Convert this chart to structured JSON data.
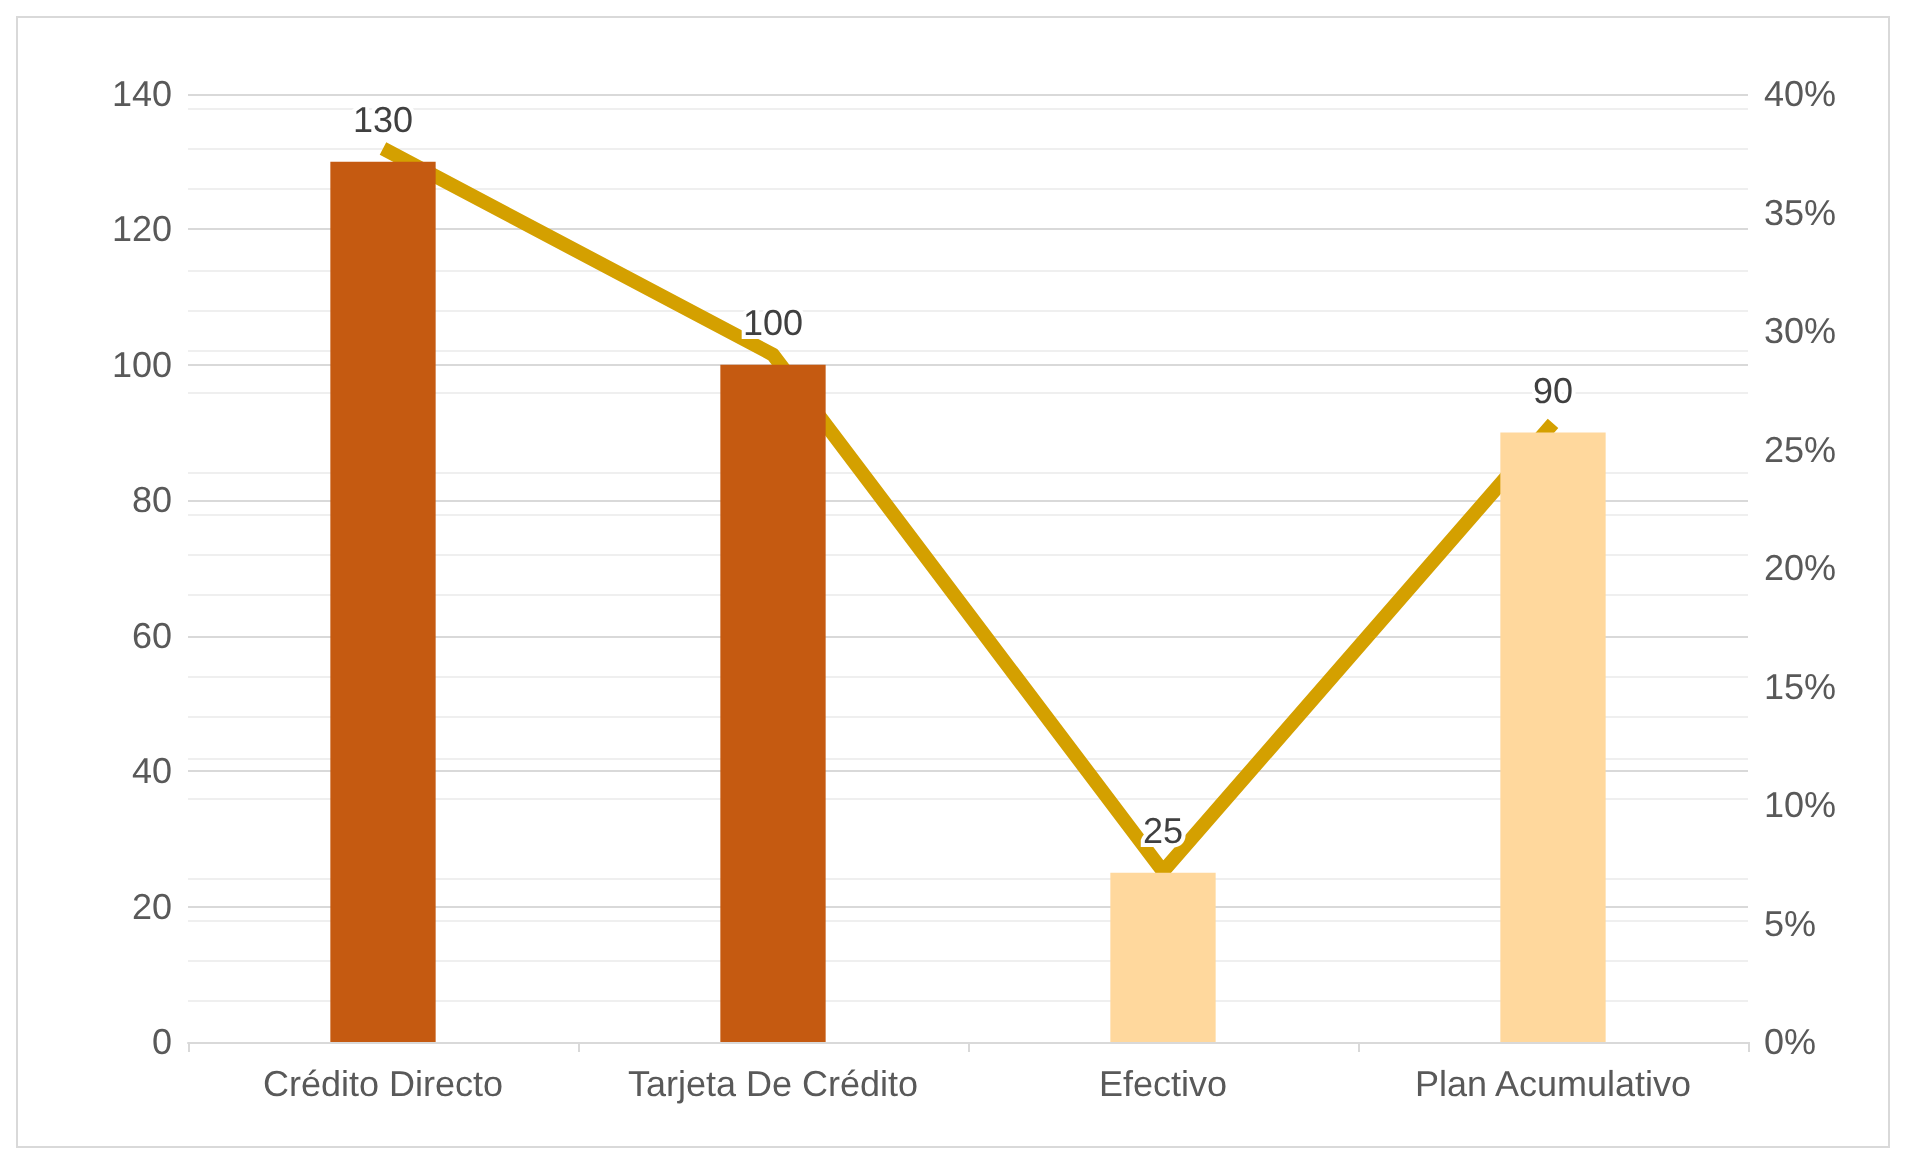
{
  "chart_data": {
    "type": "bar",
    "categories": [
      "Crédito Directo",
      "Tarjeta De Crédito",
      "Efectivo",
      "Plan Acumulativo"
    ],
    "series": [
      {
        "values": [
          130,
          100,
          25,
          90
        ],
        "colors": [
          "#c55a11",
          "#c55a11",
          "#ffd89d",
          "#ffd89d"
        ],
        "data_labels": true
      },
      {
        "type": "line",
        "axis": "y2",
        "color": "#d4a000",
        "values": [
          37.7,
          29.0,
          7.2,
          26.1
        ],
        "marker": "none"
      }
    ],
    "ylim": [
      0,
      140
    ],
    "yticks": [
      0,
      20,
      40,
      60,
      80,
      100,
      120,
      140
    ],
    "y2lim": [
      0,
      40
    ],
    "y2ticks": [
      {
        "value": 0,
        "label": "0%"
      },
      {
        "value": 5,
        "label": "5%"
      },
      {
        "value": 10,
        "label": "10%"
      },
      {
        "value": 15,
        "label": "15%"
      },
      {
        "value": 20,
        "label": "20%"
      },
      {
        "value": 25,
        "label": "25%"
      },
      {
        "value": 30,
        "label": "30%"
      },
      {
        "value": 35,
        "label": "35%"
      },
      {
        "value": 40,
        "label": "40%"
      }
    ],
    "grid": true
  }
}
